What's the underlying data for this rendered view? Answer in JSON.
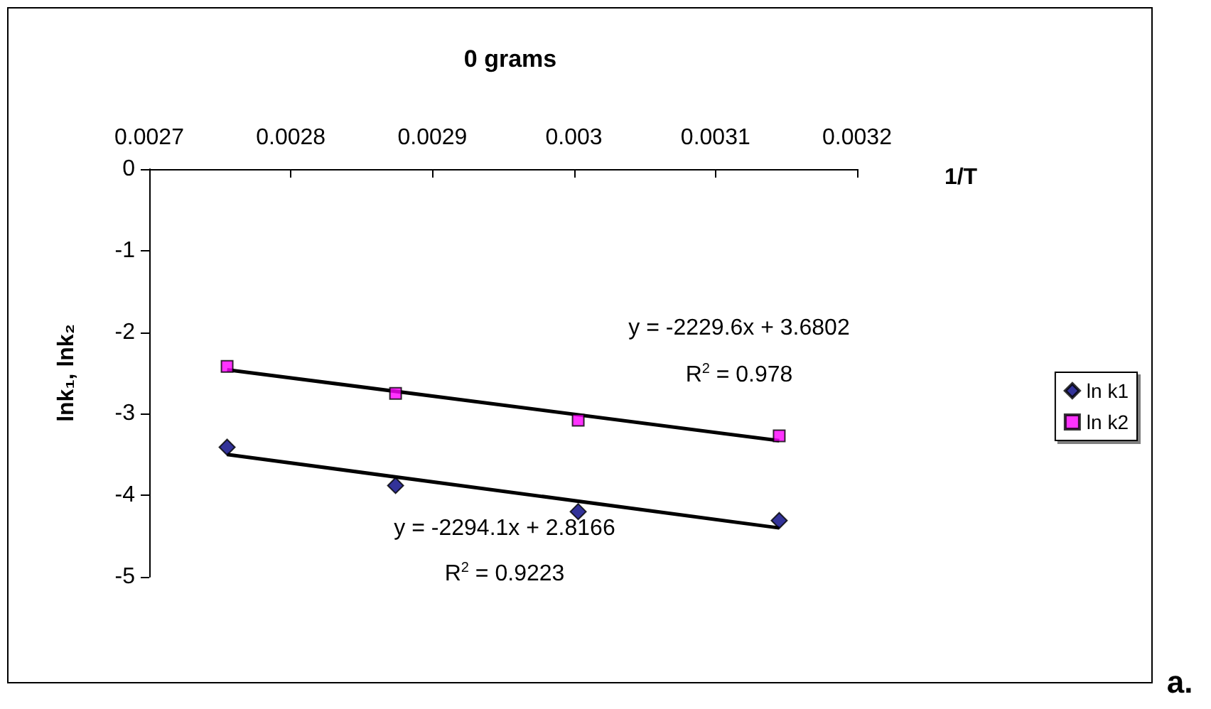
{
  "chart_data": {
    "type": "scatter",
    "title": "0 grams",
    "xlabel": "1/T",
    "ylabel": "lnk₁, lnk₂",
    "xlim": [
      0.0027,
      0.0032
    ],
    "xticks": [
      0.0027,
      0.0028,
      0.0029,
      0.003,
      0.0031,
      0.0032
    ],
    "ylim": [
      -5,
      0
    ],
    "yticks": [
      0,
      -1,
      -2,
      -3,
      -4,
      -5
    ],
    "grid": false,
    "legend": "right",
    "series": [
      {
        "name": "ln k1",
        "color": "#000080",
        "marker": "diamond",
        "x": [
          0.002755,
          0.002874,
          0.003003,
          0.003145
        ],
        "values": [
          -3.41,
          -3.88,
          -4.2,
          -4.31
        ]
      },
      {
        "name": "ln k2",
        "color": "#ff00ff",
        "marker": "square",
        "x": [
          0.002755,
          0.002874,
          0.003003,
          0.003145
        ],
        "values": [
          -2.42,
          -2.75,
          -3.08,
          -3.27
        ]
      },
      {
        "type": "line",
        "color": "#000000",
        "x": [
          0.002755,
          0.003145
        ],
        "values": [
          -2.46,
          -3.33
        ]
      },
      {
        "type": "line",
        "color": "#000000",
        "x": [
          0.002755,
          0.003145
        ],
        "values": [
          -3.5,
          -4.4
        ]
      }
    ],
    "annotations": [
      "y = -2229.6x + 3.6802",
      "R$^{2}$ = 0.978",
      "y = -2294.1x + 2.8166",
      "R$^{2}$ = 0.9223",
      "a."
    ]
  }
}
